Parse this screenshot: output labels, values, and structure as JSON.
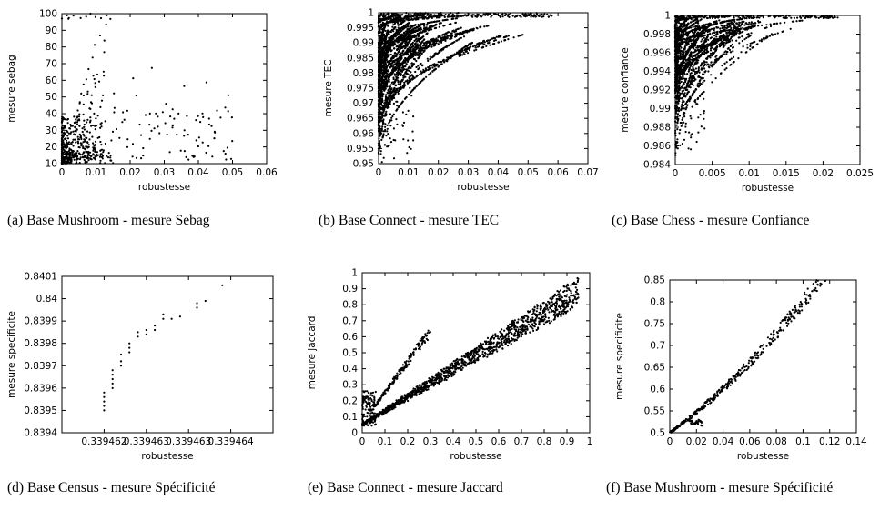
{
  "figure": {
    "captions": [
      "(a) Base Mushroom - mesure Sebag",
      "(b) Base Connect - mesure TEC",
      "(c) Base Chess - mesure Confiance",
      "(d) Base Census - mesure Spécificité",
      "(e) Base Connect - mesure Jaccard",
      "(f) Base Mushroom - mesure Spécificité"
    ]
  },
  "chart_data": [
    {
      "type": "scatter",
      "xlabel": "robustesse",
      "ylabel": "mesure sebag",
      "xlim": [
        0,
        0.06
      ],
      "ylim": [
        10,
        100
      ],
      "xticks": [
        "0",
        "0.01",
        "0.02",
        "0.03",
        "0.04",
        "0.05",
        "0.06"
      ],
      "yticks": [
        "10",
        "20",
        "30",
        "40",
        "50",
        "60",
        "70",
        "80",
        "90",
        "100"
      ],
      "marker_color": "#000000"
    },
    {
      "type": "scatter",
      "xlabel": "robustesse",
      "ylabel": "mesure TEC",
      "xlim": [
        0,
        0.07
      ],
      "ylim": [
        0.95,
        1
      ],
      "xticks": [
        "0",
        "0.01",
        "0.02",
        "0.03",
        "0.04",
        "0.05",
        "0.06",
        "0.07"
      ],
      "yticks": [
        "0.95",
        "0.955",
        "0.96",
        "0.965",
        "0.97",
        "0.975",
        "0.98",
        "0.985",
        "0.99",
        "0.995",
        "1"
      ],
      "marker_color": "#000000"
    },
    {
      "type": "scatter",
      "xlabel": "robustesse",
      "ylabel": "mesure confiance",
      "xlim": [
        0,
        0.025
      ],
      "ylim": [
        0.984,
        1
      ],
      "xticks": [
        "0",
        "0.005",
        "0.01",
        "0.015",
        "0.02",
        "0.025"
      ],
      "yticks": [
        "0.984",
        "0.986",
        "0.988",
        "0.99",
        "0.992",
        "0.994",
        "0.996",
        "0.998",
        "1"
      ],
      "marker_color": "#000000"
    },
    {
      "type": "scatter",
      "xlabel": "robustesse",
      "ylabel": "mesure specificite",
      "xlim": [
        0.3394615,
        0.339464
      ],
      "ylim": [
        0.8394,
        0.8401
      ],
      "xticks": [
        "0.339462",
        "0.339463",
        "0.339463",
        "0.339464"
      ],
      "yticks": [
        "0.8394",
        "0.8395",
        "0.8396",
        "0.8397",
        "0.8398",
        "0.8399",
        "0.84",
        "0.8401"
      ],
      "points": [
        [
          0.339462,
          0.8395
        ],
        [
          0.339462,
          0.83952
        ],
        [
          0.339462,
          0.83954
        ],
        [
          0.339462,
          0.83956
        ],
        [
          0.339462,
          0.83958
        ],
        [
          0.3394621,
          0.8396
        ],
        [
          0.3394621,
          0.83962
        ],
        [
          0.3394621,
          0.83964
        ],
        [
          0.3394621,
          0.83966
        ],
        [
          0.3394621,
          0.83968
        ],
        [
          0.3394622,
          0.8397
        ],
        [
          0.3394622,
          0.83972
        ],
        [
          0.3394622,
          0.83975
        ],
        [
          0.3394623,
          0.83976
        ],
        [
          0.3394623,
          0.83978
        ],
        [
          0.3394623,
          0.8398
        ],
        [
          0.3394624,
          0.83983
        ],
        [
          0.3394624,
          0.83985
        ],
        [
          0.3394625,
          0.83984
        ],
        [
          0.3394625,
          0.83986
        ],
        [
          0.3394626,
          0.83986
        ],
        [
          0.3394626,
          0.83988
        ],
        [
          0.3394627,
          0.83991
        ],
        [
          0.3394627,
          0.83993
        ],
        [
          0.3394628,
          0.83991
        ],
        [
          0.3394629,
          0.83992
        ],
        [
          0.3394631,
          0.83996
        ],
        [
          0.3394631,
          0.83998
        ],
        [
          0.3394632,
          0.83999
        ],
        [
          0.3394634,
          0.84006
        ]
      ],
      "marker_color": "#000000"
    },
    {
      "type": "scatter",
      "xlabel": "robustesse",
      "ylabel": "mesure jaccard",
      "xlim": [
        0,
        1
      ],
      "ylim": [
        0,
        1
      ],
      "xticks": [
        "0",
        "0.1",
        "0.2",
        "0.3",
        "0.4",
        "0.5",
        "0.6",
        "0.7",
        "0.8",
        "0.9",
        "1"
      ],
      "yticks": [
        "0",
        "0.1",
        "0.2",
        "0.3",
        "0.4",
        "0.5",
        "0.6",
        "0.7",
        "0.8",
        "0.9",
        "1"
      ],
      "marker_color": "#000000"
    },
    {
      "type": "scatter",
      "xlabel": "robustesse",
      "ylabel": "mesure specificite",
      "xlim": [
        0,
        0.14
      ],
      "ylim": [
        0.5,
        0.85
      ],
      "xticks": [
        "0",
        "0.02",
        "0.04",
        "0.06",
        "0.08",
        "0.1",
        "0.12",
        "0.14"
      ],
      "yticks": [
        "0.5",
        "0.55",
        "0.6",
        "0.65",
        "0.7",
        "0.75",
        "0.8",
        "0.85"
      ],
      "marker_color": "#000000"
    }
  ]
}
